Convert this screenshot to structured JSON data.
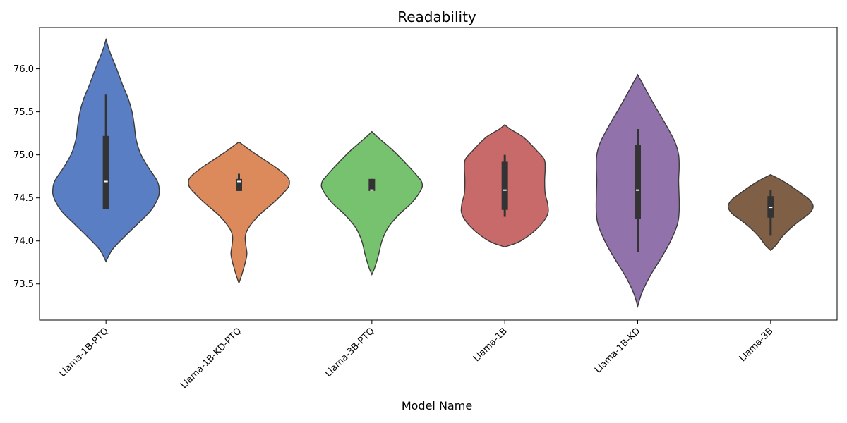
{
  "chart_data": {
    "type": "violin",
    "title": "Readability",
    "xlabel": "Model Name",
    "ylabel": "",
    "ylim": [
      73.08,
      76.48
    ],
    "yticks": [
      73.5,
      74.0,
      74.5,
      75.0,
      75.5,
      76.0
    ],
    "ytick_labels": [
      "73.5",
      "74.0",
      "74.5",
      "75.0",
      "75.5",
      "76.0"
    ],
    "grid": false,
    "categories": [
      "Llama-1B-PTQ",
      "Llama-1B-KD-PTQ",
      "Llama-3B-PTQ",
      "Llama-1B",
      "Llama-1B-KD",
      "Llama-3B"
    ],
    "colors": [
      "#5a7ec3",
      "#dc8a5c",
      "#76c26e",
      "#c96a6a",
      "#9172ab",
      "#7f5f45"
    ],
    "violins": [
      {
        "name": "Llama-1B-PTQ",
        "min": 73.76,
        "max": 76.34,
        "q1": 74.37,
        "median": 74.69,
        "q3": 75.22,
        "whisker_low": 74.37,
        "whisker_high": 75.7,
        "profile": [
          [
            73.76,
            0
          ],
          [
            73.9,
            0.12
          ],
          [
            74.05,
            0.35
          ],
          [
            74.2,
            0.6
          ],
          [
            74.35,
            0.84
          ],
          [
            74.5,
            0.98
          ],
          [
            74.6,
            1.0
          ],
          [
            74.7,
            0.96
          ],
          [
            74.85,
            0.8
          ],
          [
            75.0,
            0.66
          ],
          [
            75.1,
            0.6
          ],
          [
            75.2,
            0.56
          ],
          [
            75.35,
            0.53
          ],
          [
            75.5,
            0.49
          ],
          [
            75.65,
            0.42
          ],
          [
            75.8,
            0.32
          ],
          [
            76.0,
            0.2
          ],
          [
            76.2,
            0.07
          ],
          [
            76.34,
            0
          ]
        ]
      },
      {
        "name": "Llama-1B-KD-PTQ",
        "min": 73.51,
        "max": 75.15,
        "q1": 74.58,
        "median": 74.69,
        "q3": 74.72,
        "whisker_low": 74.58,
        "whisker_high": 74.78,
        "profile": [
          [
            73.51,
            0
          ],
          [
            73.6,
            0.05
          ],
          [
            73.75,
            0.12
          ],
          [
            73.85,
            0.15
          ],
          [
            73.95,
            0.13
          ],
          [
            74.05,
            0.12
          ],
          [
            74.15,
            0.18
          ],
          [
            74.3,
            0.38
          ],
          [
            74.45,
            0.66
          ],
          [
            74.6,
            0.9
          ],
          [
            74.68,
            0.95
          ],
          [
            74.75,
            0.9
          ],
          [
            74.85,
            0.7
          ],
          [
            74.95,
            0.46
          ],
          [
            75.05,
            0.22
          ],
          [
            75.15,
            0
          ]
        ]
      },
      {
        "name": "Llama-3B-PTQ",
        "min": 73.61,
        "max": 75.27,
        "q1": 74.58,
        "median": 74.59,
        "q3": 74.72,
        "whisker_low": 74.58,
        "whisker_high": 74.72,
        "profile": [
          [
            73.61,
            0
          ],
          [
            73.7,
            0.06
          ],
          [
            73.85,
            0.13
          ],
          [
            74.0,
            0.19
          ],
          [
            74.15,
            0.3
          ],
          [
            74.3,
            0.5
          ],
          [
            74.45,
            0.76
          ],
          [
            74.6,
            0.93
          ],
          [
            74.68,
            0.94
          ],
          [
            74.75,
            0.86
          ],
          [
            74.9,
            0.64
          ],
          [
            75.05,
            0.4
          ],
          [
            75.2,
            0.12
          ],
          [
            75.27,
            0
          ]
        ]
      },
      {
        "name": "Llama-1B",
        "min": 73.93,
        "max": 75.35,
        "q1": 74.36,
        "median": 74.59,
        "q3": 74.92,
        "whisker_low": 74.28,
        "whisker_high": 75.0,
        "profile": [
          [
            73.93,
            0
          ],
          [
            74.0,
            0.3
          ],
          [
            74.15,
            0.62
          ],
          [
            74.3,
            0.8
          ],
          [
            74.42,
            0.81
          ],
          [
            74.55,
            0.76
          ],
          [
            74.7,
            0.75
          ],
          [
            74.85,
            0.76
          ],
          [
            74.95,
            0.74
          ],
          [
            75.05,
            0.6
          ],
          [
            75.2,
            0.36
          ],
          [
            75.3,
            0.1
          ],
          [
            75.35,
            0
          ]
        ]
      },
      {
        "name": "Llama-1B-KD",
        "min": 73.24,
        "max": 75.93,
        "q1": 74.26,
        "median": 74.59,
        "q3": 75.12,
        "whisker_low": 73.87,
        "whisker_high": 75.3,
        "profile": [
          [
            73.24,
            0
          ],
          [
            73.4,
            0.08
          ],
          [
            73.6,
            0.24
          ],
          [
            73.8,
            0.44
          ],
          [
            74.0,
            0.62
          ],
          [
            74.2,
            0.75
          ],
          [
            74.35,
            0.78
          ],
          [
            74.5,
            0.78
          ],
          [
            74.7,
            0.77
          ],
          [
            74.85,
            0.78
          ],
          [
            75.0,
            0.77
          ],
          [
            75.15,
            0.7
          ],
          [
            75.35,
            0.53
          ],
          [
            75.55,
            0.34
          ],
          [
            75.75,
            0.16
          ],
          [
            75.93,
            0
          ]
        ]
      },
      {
        "name": "Llama-3B",
        "min": 73.89,
        "max": 74.77,
        "q1": 74.27,
        "median": 74.39,
        "q3": 74.52,
        "whisker_low": 74.06,
        "whisker_high": 74.59,
        "profile": [
          [
            73.89,
            0
          ],
          [
            73.95,
            0.1
          ],
          [
            74.05,
            0.22
          ],
          [
            74.15,
            0.38
          ],
          [
            74.25,
            0.58
          ],
          [
            74.32,
            0.73
          ],
          [
            74.4,
            0.8
          ],
          [
            74.48,
            0.73
          ],
          [
            74.55,
            0.58
          ],
          [
            74.65,
            0.35
          ],
          [
            74.72,
            0.16
          ],
          [
            74.77,
            0
          ]
        ]
      }
    ]
  }
}
